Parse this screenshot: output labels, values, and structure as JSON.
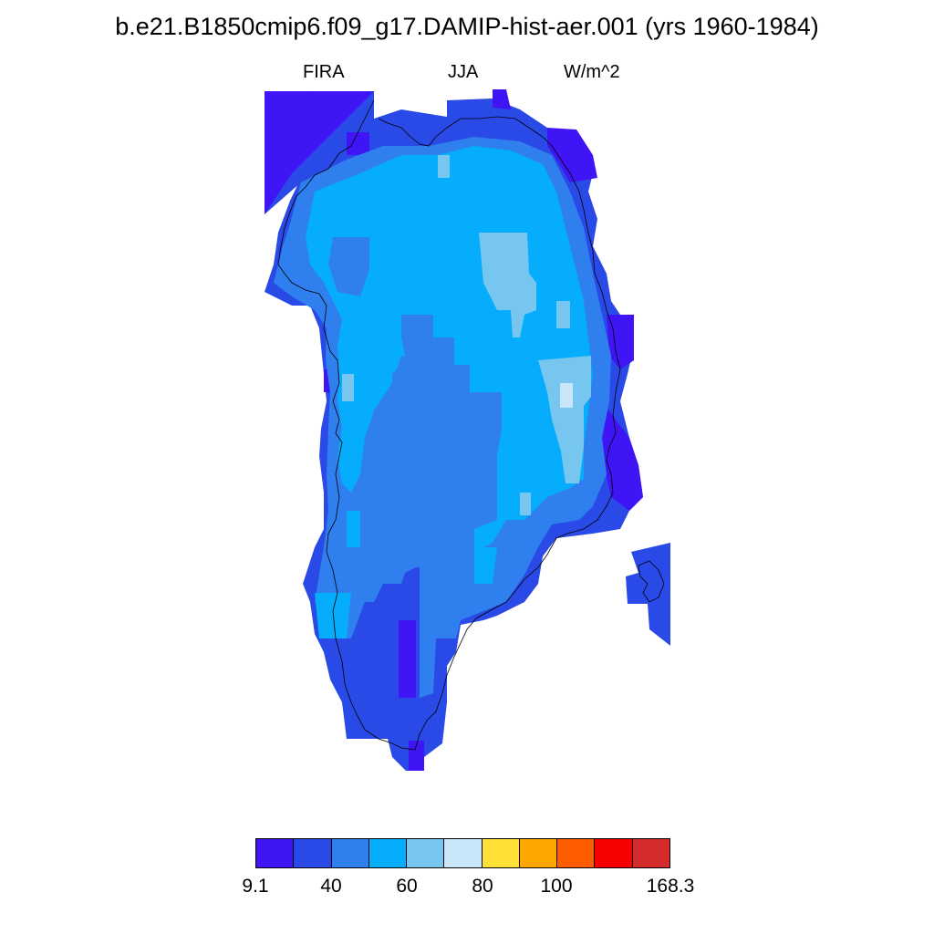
{
  "header": {
    "title": "b.e21.B1850cmip6.f09_g17.DAMIP-hist-aer.001 (yrs 1960-1984)",
    "left_label": "FIRA",
    "center_label": "JJA",
    "right_label": "W/m^2"
  },
  "colorbar": {
    "colors": [
      "#3f14f5",
      "#2a4ae8",
      "#2f80ee",
      "#05adfc",
      "#76c6f0",
      "#c8e6f8",
      "#ffe135",
      "#ffa600",
      "#ff5c00",
      "#f70000",
      "#d42c2c"
    ],
    "labels": [
      "9.1",
      "40",
      "60",
      "80",
      "100",
      "168.3"
    ]
  },
  "map": {
    "palette": {
      "c1": "#3f14f5",
      "c2": "#2a4ae8",
      "c3": "#2f80ee",
      "c4": "#05adfc",
      "c5": "#76c6f0",
      "c6": "#c8e6f8"
    }
  }
}
